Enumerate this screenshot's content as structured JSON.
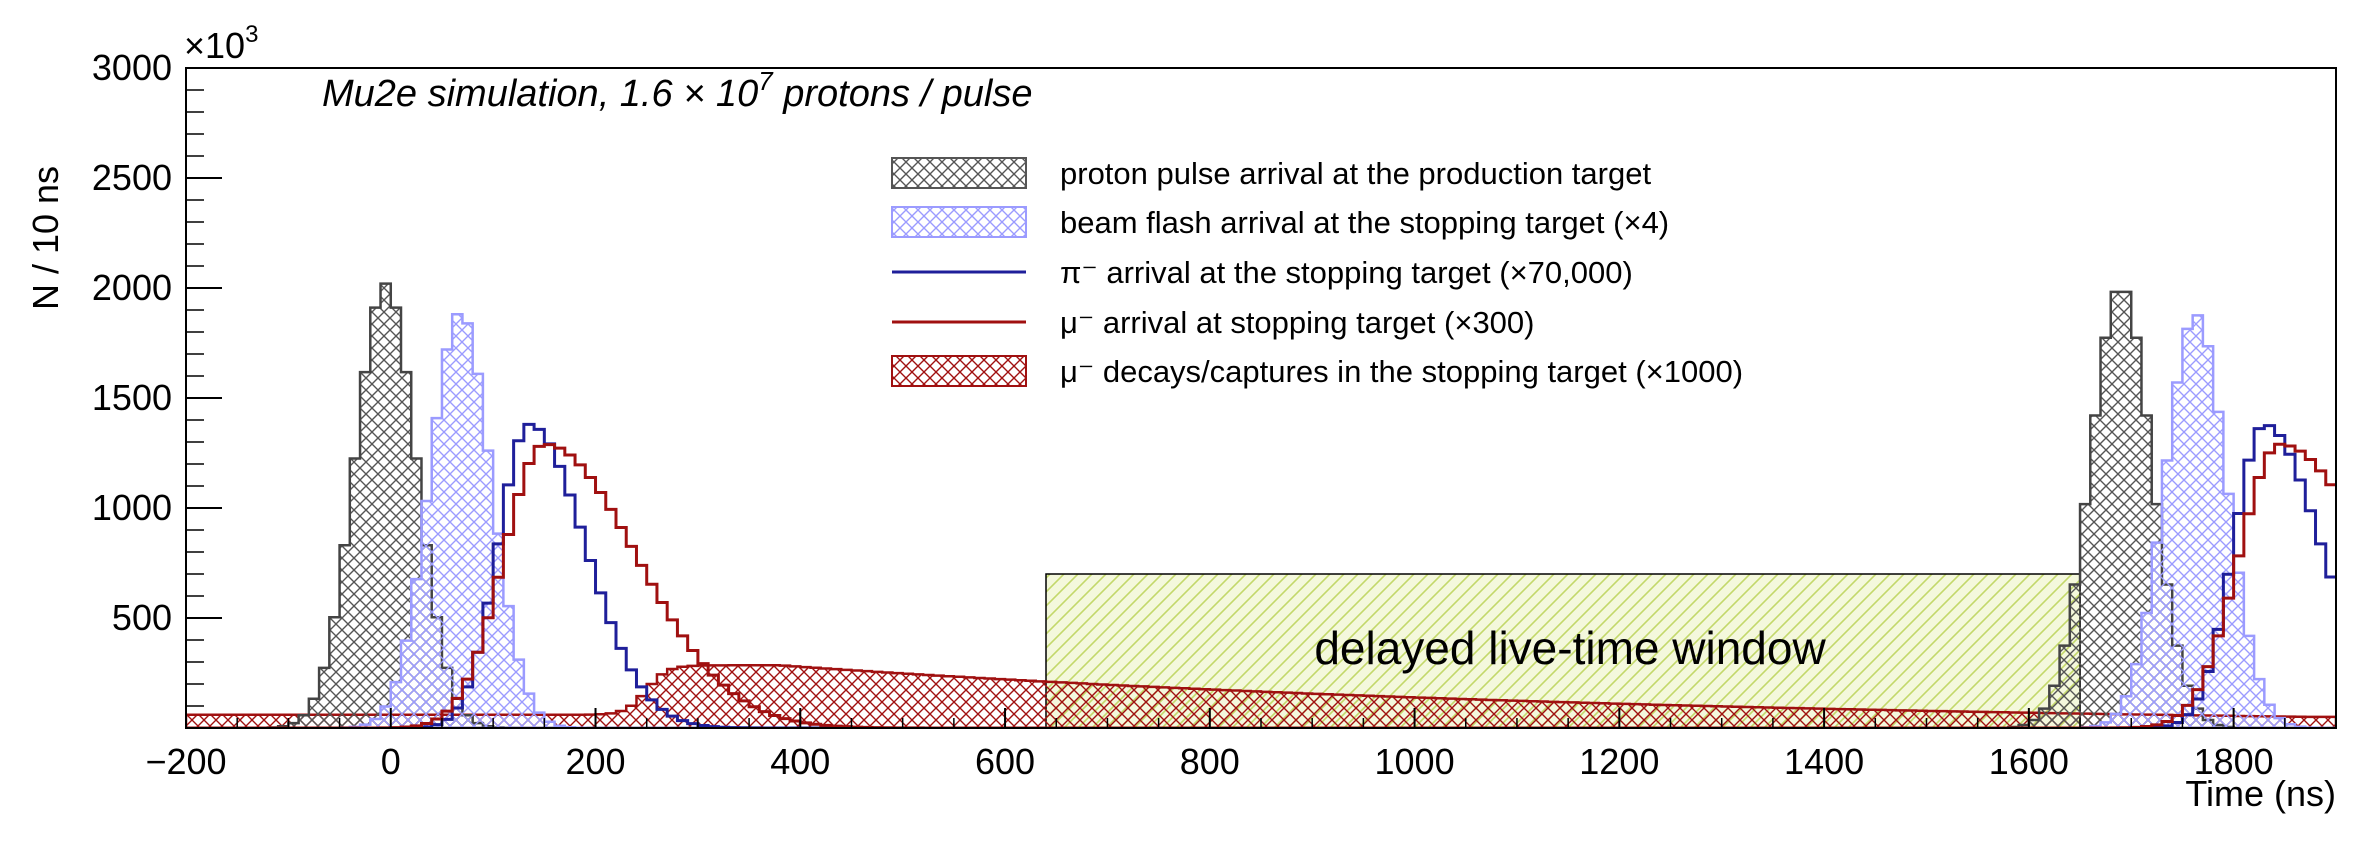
{
  "chart_data": {
    "type": "histogram",
    "title": "Mu2e simulation, 1.6 × 10",
    "title_exponent": "7",
    "title_suffix": " protons / pulse",
    "xlabel": "Time (ns)",
    "ylabel": "N / 10 ns",
    "y_multiplier": "×10",
    "y_multiplier_exponent": "3",
    "xlim": [
      -200,
      1900
    ],
    "ylim": [
      0,
      3000
    ],
    "x_ticks": [
      -200,
      0,
      200,
      400,
      600,
      800,
      1000,
      1200,
      1400,
      1600,
      1800
    ],
    "y_ticks": [
      500,
      1000,
      1500,
      2000,
      2500,
      3000
    ],
    "y_tick_labels": [
      "500",
      "1000",
      "1500",
      "2000",
      "2500",
      "3000"
    ],
    "grid": false,
    "legend_position": "top-center",
    "bin_width_ns": 10,
    "pulse_period_ns": 1695,
    "annotation": {
      "text": "delayed live-time window",
      "x_range": [
        640,
        1650
      ],
      "y_max": 700
    },
    "series": [
      {
        "name": "proton pulse arrival at the production target",
        "style": "hatched-histogram",
        "color": "#555555",
        "peaks": [
          {
            "center": -5,
            "sigma": 30,
            "max": 2020
          },
          {
            "center": 1690,
            "sigma": 30,
            "max": 2010
          }
        ],
        "range": [
          -75,
          1690
        ]
      },
      {
        "name": "beam flash arrival at the stopping target (×4)",
        "style": "hatched-histogram",
        "color": "#8f8fff",
        "peaks": [
          {
            "center": 68,
            "sigma": 30,
            "max": 1890
          },
          {
            "center": 1763,
            "sigma": 30,
            "max": 1880
          }
        ]
      },
      {
        "name": "π⁻ arrival at the stopping target (×70,000)",
        "style": "line-histogram",
        "color": "#1f1f9a",
        "peaks": [
          {
            "center": 135,
            "sigma_left": 30,
            "sigma_right": 55,
            "max": 1380
          },
          {
            "center": 1830,
            "sigma_left": 30,
            "sigma_right": 55,
            "max": 1380
          }
        ]
      },
      {
        "name": "μ⁻ arrival at stopping target (×300)",
        "style": "line-histogram",
        "color": "#a01010",
        "peaks": [
          {
            "center": 150,
            "sigma_left": 40,
            "sigma_right": 90,
            "max": 1290
          },
          {
            "center": 1845,
            "sigma_left": 40,
            "sigma_right": 90,
            "max": 1290
          }
        ]
      },
      {
        "name": "μ⁻ decays/captures in the stopping target (×1000)",
        "style": "hatched-histogram",
        "color": "#a01010",
        "profile": {
          "rise_center": 250,
          "rise_width": 40,
          "peak_x": 380,
          "peak_y": 285,
          "decay_ns": 864,
          "baseline": 60
        }
      }
    ],
    "legend": [
      "proton pulse arrival at the production target",
      "beam flash arrival at the stopping target (×4)",
      "π⁻ arrival at the stopping target (×70,000)",
      "μ⁻ arrival at stopping target (×300)",
      "μ⁻ decays/captures in the stopping target (×1000)"
    ],
    "colors": {
      "window_fill": "#e8f0c0",
      "window_hatch": "#c9dc73",
      "frame": "#000000"
    }
  }
}
